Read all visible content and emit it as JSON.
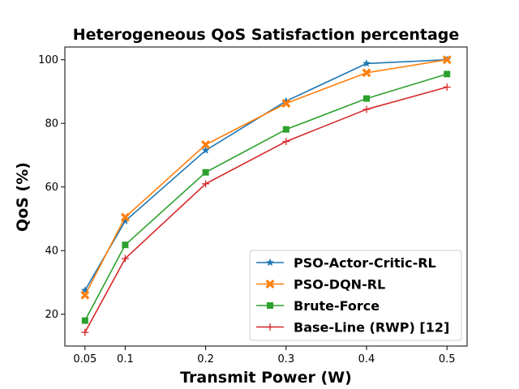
{
  "chart_data": {
    "type": "line",
    "title": "Heterogeneous QoS Satisfaction percentage",
    "xlabel": "Transmit Power (W)",
    "ylabel": "QoS (%)",
    "x": [
      0.05,
      0.1,
      0.2,
      0.3,
      0.4,
      0.5
    ],
    "x_tick_labels": [
      "0.05",
      "0.1",
      "0.2",
      "0.3",
      "0.4",
      "0.5"
    ],
    "xlim": [
      0.025,
      0.525
    ],
    "ylim": [
      10,
      104
    ],
    "y_ticks": [
      20,
      40,
      60,
      80,
      100
    ],
    "grid": false,
    "legend_position": "lower-right",
    "series": [
      {
        "name": "PSO-Actor-Critic-RL",
        "color": "#1f77b4",
        "marker": "star",
        "values": [
          27.5,
          49.3,
          71.5,
          87.0,
          98.8,
          100.0
        ]
      },
      {
        "name": "PSO-DQN-RL",
        "color": "#ff7f0e",
        "marker": "x",
        "values": [
          26.0,
          50.5,
          73.3,
          86.3,
          95.9,
          100.0
        ]
      },
      {
        "name": "Brute-Force",
        "color": "#2ca02c",
        "marker": "square",
        "values": [
          18.0,
          41.8,
          64.6,
          78.1,
          87.8,
          95.5
        ]
      },
      {
        "name": "Base-Line (RWP) [12]",
        "color": "#d62728",
        "marker": "plus",
        "values": [
          14.3,
          37.5,
          61.0,
          74.3,
          84.4,
          91.4
        ]
      }
    ]
  }
}
